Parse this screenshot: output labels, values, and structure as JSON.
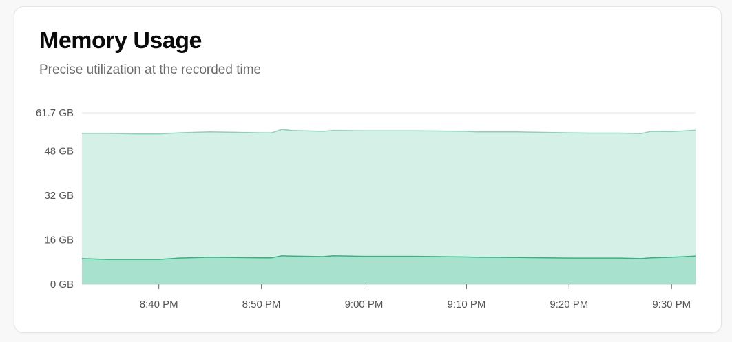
{
  "header": {
    "title": "Memory Usage",
    "subtitle": "Precise utilization at the recorded time"
  },
  "chart_data": {
    "type": "area",
    "title": "Memory Usage",
    "xlabel": "",
    "ylabel": "",
    "ylim": [
      0,
      61.7
    ],
    "y_unit": "GB",
    "y_ticks": [
      0,
      16,
      32,
      48,
      61.7
    ],
    "y_tick_labels": [
      "0 GB",
      "16 GB",
      "32 GB",
      "48 GB",
      "61.7 GB"
    ],
    "xlim": [
      "20:32:30",
      "20:32:20+60"
    ],
    "x_ticks": [
      "20:40",
      "20:50",
      "21:00",
      "21:10",
      "21:20",
      "21:30"
    ],
    "x_tick_labels": [
      "8:40 PM",
      "8:50 PM",
      "9:00 PM",
      "9:10 PM",
      "9:20 PM",
      "9:30 PM"
    ],
    "grid": "horizontal",
    "x": [
      "20:32:30",
      "20:35",
      "20:38",
      "20:40",
      "20:42",
      "20:45",
      "20:50",
      "20:51",
      "20:52",
      "20:53",
      "20:56",
      "20:57",
      "21:00",
      "21:05",
      "21:10",
      "21:11",
      "21:15",
      "21:20",
      "21:22",
      "21:25",
      "21:27",
      "21:28",
      "21:30",
      "21:32:20"
    ],
    "series": [
      {
        "values": [
          54.3,
          54.3,
          54.1,
          54.1,
          54.5,
          54.8,
          54.5,
          54.5,
          55.7,
          55.3,
          55.0,
          55.3,
          55.2,
          55.2,
          55.0,
          54.8,
          54.8,
          54.5,
          54.4,
          54.4,
          54.2,
          55.0,
          54.9,
          55.4
        ],
        "color": "#86d6b5",
        "fill": "#d5f0e6"
      },
      {
        "values": [
          9.2,
          8.9,
          8.9,
          8.9,
          9.4,
          9.7,
          9.5,
          9.5,
          10.2,
          10.1,
          9.9,
          10.2,
          10.0,
          10.0,
          9.8,
          9.7,
          9.6,
          9.4,
          9.4,
          9.4,
          9.2,
          9.5,
          9.7,
          10.1
        ],
        "color": "#2db77f",
        "fill": "#a8e2cf"
      }
    ]
  }
}
